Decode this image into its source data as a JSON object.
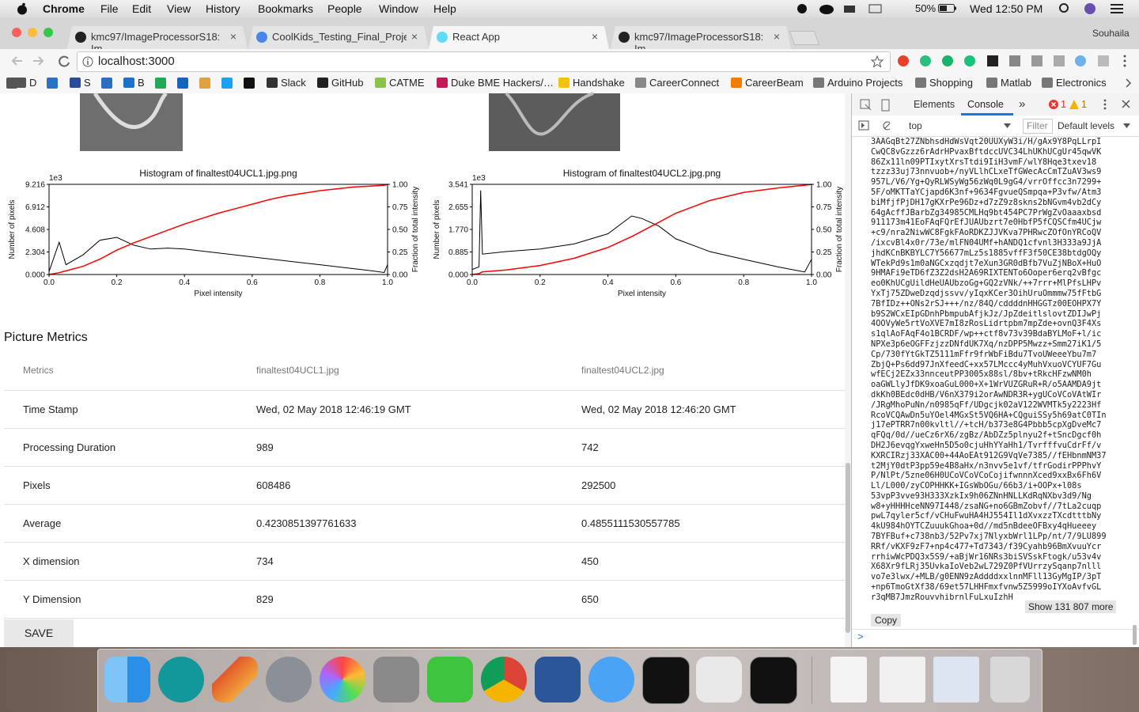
{
  "menu_bar": {
    "app": "Chrome",
    "items": [
      "File",
      "Edit",
      "View",
      "History",
      "Bookmarks",
      "People",
      "Window",
      "Help"
    ],
    "battery": "50%",
    "clock": "Wed 12:50 PM"
  },
  "tabs": [
    "kmc97/ImageProcessorS18: Im",
    "CoolKids_Testing_Final_Project",
    "React App",
    "kmc97/ImageProcessorS18: Im"
  ],
  "user": "Souhaila",
  "address": "localhost:3000",
  "bookmarks": [
    "D",
    "S",
    "B",
    "Slack",
    "GitHub",
    "CATME",
    "Duke BME Hackers/…",
    "Handshake",
    "CareerConnect",
    "CareerBeam",
    "Arduino Projects",
    "Shopping",
    "Matlab",
    "Electronics"
  ],
  "chart_data": [
    {
      "type": "line",
      "title": "Histogram of finaltest04UCL1.jpg.png",
      "xlabel": "Pixel intensity",
      "ylabel": "Number of pixels",
      "y2label": "Fraction of total intensity",
      "y_offset_label": "1e3",
      "x": [
        0,
        0.03,
        0.05,
        0.1,
        0.15,
        0.2,
        0.25,
        0.3,
        0.35,
        0.4,
        0.45,
        0.5,
        0.55,
        0.6,
        0.65,
        0.7,
        0.75,
        0.8,
        0.85,
        0.9,
        0.95,
        0.99,
        1.0
      ],
      "series": [
        {
          "name": "Histogram",
          "color": "#000000",
          "values": [
            0.3,
            3.3,
            1.0,
            2.0,
            3.5,
            3.8,
            3.0,
            2.6,
            2.7,
            2.6,
            2.4,
            2.2,
            2.0,
            1.8,
            1.6,
            1.4,
            1.2,
            1.0,
            0.8,
            0.6,
            0.4,
            0.2,
            1.0
          ]
        },
        {
          "name": "Cumulative",
          "color": "#ff0000",
          "axis": "y2",
          "values": [
            0,
            0.02,
            0.04,
            0.09,
            0.17,
            0.27,
            0.35,
            0.42,
            0.49,
            0.56,
            0.62,
            0.68,
            0.73,
            0.78,
            0.83,
            0.87,
            0.9,
            0.93,
            0.95,
            0.97,
            0.98,
            0.99,
            1.0
          ]
        }
      ],
      "xlim": [
        0,
        1
      ],
      "xticks": [
        {
          "value": 0,
          "label": "0.0"
        },
        0.2,
        0.4,
        0.6,
        0.8,
        {
          "value": 1,
          "label": "1.0"
        }
      ],
      "ylim": [
        0,
        9.216
      ],
      "yticks": [
        {
          "value": 0,
          "label": "0.000"
        },
        2.304,
        4.608,
        6.912,
        9.216
      ],
      "y2lim": [
        0,
        1
      ],
      "y2ticks": [
        {
          "value": 0,
          "label": "0.00"
        },
        {
          "value": 0.25,
          "label": "0.25"
        },
        {
          "value": 0.5,
          "label": "0.50"
        },
        {
          "value": 0.75,
          "label": "0.75"
        },
        {
          "value": 1,
          "label": "1.00"
        }
      ]
    },
    {
      "type": "line",
      "title": "Histogram of finaltest04UCL2.jpg.png",
      "xlabel": "Pixel intensity",
      "ylabel": "Number of pixels",
      "y2label": "Fraction of total intensity",
      "y_offset_label": "1e3",
      "x": [
        0,
        0.02,
        0.025,
        0.03,
        0.1,
        0.2,
        0.3,
        0.4,
        0.47,
        0.5,
        0.55,
        0.6,
        0.7,
        0.8,
        0.9,
        0.98,
        1.0
      ],
      "series": [
        {
          "name": "Histogram",
          "color": "#000000",
          "values": [
            0.2,
            0.3,
            3.3,
            0.8,
            0.9,
            1.0,
            1.2,
            1.6,
            2.3,
            2.2,
            1.9,
            1.4,
            0.9,
            0.6,
            0.3,
            0.1,
            0.6
          ]
        },
        {
          "name": "Cumulative",
          "color": "#ff0000",
          "axis": "y2",
          "values": [
            0,
            0.01,
            0.02,
            0.03,
            0.05,
            0.1,
            0.18,
            0.3,
            0.42,
            0.48,
            0.58,
            0.68,
            0.82,
            0.91,
            0.96,
            0.99,
            1.0
          ]
        }
      ],
      "xlim": [
        0,
        1
      ],
      "xticks": [
        {
          "value": 0,
          "label": "0.0"
        },
        0.2,
        0.4,
        0.6,
        0.8,
        {
          "value": 1,
          "label": "1.0"
        }
      ],
      "ylim": [
        0,
        3.541
      ],
      "yticks": [
        {
          "value": 0,
          "label": "0.000"
        },
        0.885,
        {
          "value": 1.77,
          "label": "1.770"
        },
        2.655,
        3.541
      ],
      "y2lim": [
        0,
        1
      ],
      "y2ticks": [
        {
          "value": 0,
          "label": "0.00"
        },
        {
          "value": 0.25,
          "label": "0.25"
        },
        {
          "value": 0.5,
          "label": "0.50"
        },
        {
          "value": 0.75,
          "label": "0.75"
        },
        {
          "value": 1,
          "label": "1.00"
        }
      ]
    }
  ],
  "metrics": {
    "title": "Picture Metrics",
    "header": [
      "Metrics",
      "finaltest04UCL1.jpg",
      "finaltest04UCL2.jpg"
    ],
    "rows": [
      [
        "Time Stamp",
        "Wed, 02 May 2018 12:46:19 GMT",
        "Wed, 02 May 2018 12:46:20 GMT"
      ],
      [
        "Processing Duration",
        "989",
        "742"
      ],
      [
        "Pixels",
        "608486",
        "292500"
      ],
      [
        "Average",
        "0.4230851397761633",
        "0.4855111530557785"
      ],
      [
        "X dimension",
        "734",
        "450"
      ],
      [
        "Y Dimension",
        "829",
        "650"
      ]
    ]
  },
  "save": "SAVE",
  "devtools": {
    "tabs": [
      "Elements",
      "Console"
    ],
    "more": "»",
    "errors": "1",
    "warnings": "1",
    "context": "top",
    "filter": "Filter",
    "levels": "Default levels",
    "lines": [
      "3AAGqBt27ZNbhsdHdWsVqt20UUXyW3i/H/gAx9Y8PqLLrpI",
      "CwQC8vGzzz6rAdrHPvaxBftdccUVC34LhUKhUCgUr45qwVK",
      "86Zx11ln09PTIxytXrsTtdi9IiH3vmF/wlY8Hqe3txev18",
      "tzzz33uj73nnvuob+/nyVLlhCLxeTfGWecAcCmTZuAV3ws9",
      "957L/V6/Yg+QyRLWSyWg56zWq0L9gG4/vrrOffcc3n7299+",
      "5F/oMKTTaYCjapd6K3nf+9634FgvueQSmpqa+P3vfw/Atm3",
      "biMfjfPjDH17gKXrPe96Dz+d7zZ9z8skns2bNGvm4vb2dCy",
      "64gAcffJBarbZg34985CMLHq9bt454PC7PrWgZvOaaaxbsd",
      "911173m41EoFAqFQrEfJUAUbzrt7e0HbfP5fCQSCfm4UCjw",
      "+c9/nra2NiwWC8FgkFAoRDKZJJVKva7PHRwcZOfOnYRCoQV",
      "/ixcvBl4x0r/73e/mlFN04UMf+hANDQ1cfvnl3H333a9JjA",
      "jhdKCnBKBYLC7Y56677mLz5s1885vffF3f50CE38btdgOQy",
      "WTekPd9s1m0aNGCxzqdjt7eXun3GR0dBfb7VuZjNBoX+HuO",
      "9HMAFi9eTD6fZ3Z2dsH2A69RIXTENTo6Ooper6erq2vBfgc",
      "eo0KhUCgUildHeUAUbzoGg+GQ2zVNk/++7rrr+MlPfsLHPv",
      "YxTj75ZDweDzqdjssvv/yIqxKCer3OihUruOmmmw75fFtbG",
      "7BfIDz++ONs2rSJ+++/nz/84Q/cddddnHHGGTz00EOHPX7Y",
      "b9S2WCxEIpGDnhPbmpubAfjkJz/JpZdeitlslovtZDIJwPj",
      "4OOVyWe5rtVoXVE7mI8zRosLidrtpbm7mpZde+ovnQ3F4Xs",
      "s1qlAoFAqF4o1BCRDF/wp++ctf8v73v39BdaBYLMoF+l/ic",
      "NPXe3p6eOGFFzjzzDNfdUK7Xq/nzDPP5Mwzz+Smm27iK1/5",
      "Cp/730fYtGkTZ5111mFfr9frWbFiBdu7TvoUWeeeYbu7m7",
      "ZbjQ+Ps6dd97JnXfeedC+xx57LMccc4yMuhVxuoVCYUF7Gu",
      "wfECj2EZx33nnceutPP3005x88sl/8bv+tRkcHFzwNM0h",
      "oaGWLlyJfDK9xoaGuL000+X+1WrVUZGRuR+R/o5AAMDA9jt",
      "dkKh0BEdc0dHB/V6nX379i2orAwNDR3R+ygUCoVCoVAtWIr",
      "/JRgMhoPuNn/n0985qFf/UDgcjk02aV122WVMTk5y2223Hf",
      "RcoVCQAwDn5uYOel4MGxSt5VQ6HA+CQguiSSy5h69atC0TIn",
      "j17ePTRR7n00kvltl//+tcH/b373e8G4Pbbb5cpXgDveMc7",
      "qFQq/0d//ueCz6rX6/zgBz/AbDZz5plnyu2f+tSncDgcf0h",
      "DH2J6evqgYxweHn5D5o0cjuHhYYaHh1/TvrfffvuCdrFf/v",
      "KXRCIRzj33XAC00+44AoEAt912G9VqVe7385//fEHbnmNM37",
      "t2MjY0dtP3pp59e4B8aHx/n3nvv5e1vf/tfrGodirPPPhvY",
      "P/NlPt/5zne06H0UCoVCoVCoCojifwnnnXced9xxBx6Fh6V",
      "Ll/L000/zyCOPHHKK+IGsWbOGu/66b3/i+OOPx+l08s",
      "53vpP3vve93H333XzkIx9h06ZNnHNLLKdRqNXbv3d9/Ng",
      "w8+yHHHHceNN97I448/zsaNG+no6GBmZobvf//7tLa2cuqp",
      "pwL7qyler5cf/vCHuFwuHA4HJ554Il1dXvxzzTXcdtttbNy",
      "4kU984hOYTCZuuukGhoa+0d//md5nBdeeOFBxy4qHueeey",
      "7BYFBuf+c738nb3/52Pv7xj7NlyxbWrl1LPp/nt/7/9LU899",
      "RRf/vKXF9zF7+np4c477+Td7343/f39Cyahb96BmXvuuYcr",
      "rrhiwWcPDQ3x5S9/+aBjWr16NRs3biSVSskFtogk/u53v4v",
      "X68Xr9fLRj35UvkaIoVeb2wL729Z0PfVUrrzySqanp7nlll",
      "vo7e3lwx/+MLB/g0ENN9zAddddxxlnnMFll13GyMgIP/3pT",
      "+np6TmoGtXf38/69et57LHHFmxfvnw5Z5999oIYXoAvfvGL",
      "r3qMB7JmzRouvvhibrnlFuLxuIzhH"
    ],
    "show_more": "Show 131 807 more",
    "copy": "Copy",
    "prompt": ">"
  }
}
